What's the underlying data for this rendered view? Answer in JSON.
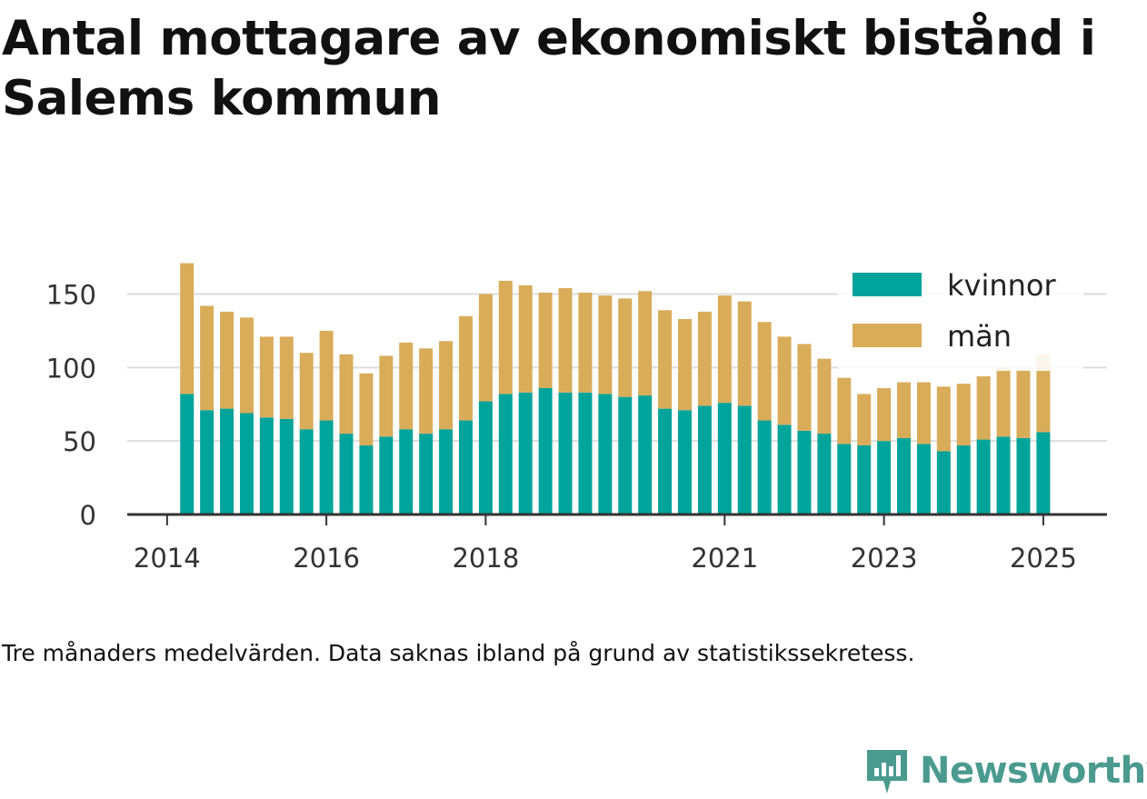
{
  "title": "Antal mottagare av ekonomiskt bistånd i Salems kommun",
  "footnote": "Tre månaders medelvärden. Data saknas ibland på grund av statistikssekretess.",
  "brand": {
    "name": "Newsworthy"
  },
  "colors": {
    "kvinnor": "#00a49a",
    "man": "#d9ac5a",
    "grid": "#dddddd",
    "axis": "#333333"
  },
  "chart_data": {
    "type": "bar",
    "stacked": true,
    "x_ticks": [
      {
        "label": "2014",
        "x": 2014.0
      },
      {
        "label": "2016",
        "x": 2016.0
      },
      {
        "label": "2018",
        "x": 2018.0
      },
      {
        "label": "2021",
        "x": 2021.0
      },
      {
        "label": "2023",
        "x": 2023.0
      },
      {
        "label": "2025",
        "x": 2025.0
      }
    ],
    "y_ticks": [
      0,
      50,
      100,
      150
    ],
    "ylim": [
      0,
      180
    ],
    "xlim": [
      2013.5,
      2025.8
    ],
    "grid": true,
    "legend": {
      "position": "top-right",
      "items": [
        {
          "label": "kvinnor",
          "series": "kvinnor"
        },
        {
          "label": "män",
          "series": "man"
        }
      ]
    },
    "x": [
      2014.25,
      2014.5,
      2014.75,
      2015.0,
      2015.25,
      2015.5,
      2015.75,
      2016.0,
      2016.25,
      2016.5,
      2016.75,
      2017.0,
      2017.25,
      2017.5,
      2017.75,
      2018.0,
      2018.25,
      2018.5,
      2018.75,
      2019.0,
      2019.25,
      2019.5,
      2019.75,
      2020.0,
      2020.25,
      2020.5,
      2020.75,
      2021.0,
      2021.25,
      2021.5,
      2021.75,
      2022.0,
      2022.25,
      2022.5,
      2022.75,
      2023.0,
      2023.25,
      2023.5,
      2023.75,
      2024.0,
      2024.25,
      2024.5,
      2024.75,
      2025.0
    ],
    "series": [
      {
        "name": "kvinnor",
        "color": "#00a49a",
        "values": [
          82,
          71,
          72,
          69,
          66,
          65,
          58,
          64,
          55,
          47,
          53,
          58,
          55,
          58,
          64,
          77,
          82,
          83,
          86,
          83,
          83,
          82,
          80,
          81,
          72,
          71,
          74,
          76,
          74,
          64,
          61,
          57,
          55,
          48,
          47,
          50,
          52,
          48,
          43,
          47,
          51,
          53,
          52,
          56
        ]
      },
      {
        "name": "män",
        "color": "#d9ac5a",
        "values": [
          89,
          71,
          66,
          65,
          55,
          56,
          52,
          61,
          54,
          49,
          55,
          59,
          58,
          60,
          71,
          73,
          77,
          73,
          65,
          71,
          68,
          67,
          67,
          71,
          67,
          62,
          64,
          73,
          71,
          67,
          60,
          59,
          51,
          45,
          35,
          36,
          38,
          42,
          44,
          42,
          43,
          47,
          47,
          53
        ]
      }
    ]
  }
}
